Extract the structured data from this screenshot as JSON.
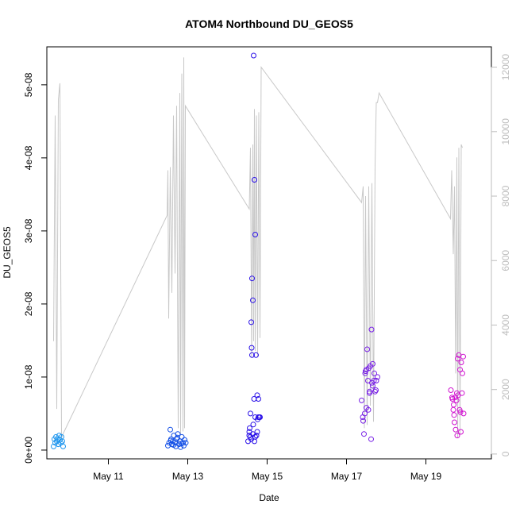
{
  "chart_data": {
    "type": "scatter",
    "title": "ATOM4 Northbound DU_GEOS5",
    "xlabel": "Date",
    "ylabel": "DU_GEOS5",
    "x_units": "days in May",
    "xlim": [
      9.45,
      20.65
    ],
    "ylim": [
      -1.2e-09,
      5.52e-08
    ],
    "y2lim": [
      -150,
      12630
    ],
    "x_ticks": [
      {
        "value": 11,
        "label": "May 11"
      },
      {
        "value": 13,
        "label": "May 13"
      },
      {
        "value": 15,
        "label": "May 15"
      },
      {
        "value": 17,
        "label": "May 17"
      },
      {
        "value": 19,
        "label": "May 19"
      }
    ],
    "y_ticks": [
      {
        "value": 0,
        "label": "0e+00"
      },
      {
        "value": 1e-08,
        "label": "1e-08"
      },
      {
        "value": 2e-08,
        "label": "2e-08"
      },
      {
        "value": 3e-08,
        "label": "3e-08"
      },
      {
        "value": 4e-08,
        "label": "4e-08"
      },
      {
        "value": 5e-08,
        "label": "5e-08"
      }
    ],
    "y2_ticks": [
      {
        "value": 0,
        "label": "0"
      },
      {
        "value": 2000,
        "label": "2000"
      },
      {
        "value": 4000,
        "label": "4000"
      },
      {
        "value": 6000,
        "label": "6000"
      },
      {
        "value": 8000,
        "label": "8000"
      },
      {
        "value": 10000,
        "label": "10000"
      },
      {
        "value": 12000,
        "label": "12000"
      }
    ],
    "grid": false,
    "secondary_series": {
      "color": "#c8c8c8",
      "points": [
        [
          9.62,
          3500
        ],
        [
          9.66,
          10500
        ],
        [
          9.7,
          1400
        ],
        [
          9.74,
          11000
        ],
        [
          9.78,
          11500
        ],
        [
          9.82,
          500
        ],
        [
          9.85,
          600
        ],
        [
          12.48,
          7400
        ],
        [
          12.5,
          8800
        ],
        [
          12.52,
          4200
        ],
        [
          12.56,
          8900
        ],
        [
          12.6,
          5000
        ],
        [
          12.64,
          10500
        ],
        [
          12.68,
          5600
        ],
        [
          12.72,
          10800
        ],
        [
          12.76,
          800
        ],
        [
          12.8,
          11200
        ],
        [
          12.82,
          600
        ],
        [
          12.85,
          11800
        ],
        [
          12.88,
          700
        ],
        [
          12.9,
          12300
        ],
        [
          12.92,
          800
        ],
        [
          12.94,
          10800
        ],
        [
          14.55,
          7600
        ],
        [
          14.58,
          9500
        ],
        [
          14.61,
          3000
        ],
        [
          14.64,
          9600
        ],
        [
          14.66,
          3500
        ],
        [
          14.68,
          10700
        ],
        [
          14.7,
          3200
        ],
        [
          14.73,
          10500
        ],
        [
          14.76,
          3000
        ],
        [
          14.79,
          10600
        ],
        [
          14.82,
          3600
        ],
        [
          14.85,
          12000
        ],
        [
          17.38,
          7800
        ],
        [
          17.42,
          8300
        ],
        [
          17.45,
          800
        ],
        [
          17.48,
          8000
        ],
        [
          17.52,
          900
        ],
        [
          17.56,
          8300
        ],
        [
          17.6,
          1500
        ],
        [
          17.64,
          8400
        ],
        [
          17.68,
          1000
        ],
        [
          17.72,
          9000
        ],
        [
          17.75,
          10900
        ],
        [
          17.78,
          10900
        ],
        [
          17.82,
          11200
        ],
        [
          19.62,
          7300
        ],
        [
          19.65,
          8800
        ],
        [
          19.69,
          6200
        ],
        [
          19.72,
          8300
        ],
        [
          19.75,
          2500
        ],
        [
          19.78,
          9200
        ],
        [
          19.8,
          500
        ],
        [
          19.83,
          9500
        ],
        [
          19.86,
          600
        ],
        [
          19.89,
          9600
        ],
        [
          19.92,
          9500
        ]
      ]
    },
    "series": [
      {
        "color": "#1f96ee",
        "x": [
          9.62,
          9.64,
          9.66,
          9.68,
          9.7,
          9.72,
          9.74,
          9.76,
          9.78,
          9.8,
          9.82,
          9.84,
          9.86
        ],
        "y": [
          5e-10,
          1.5e-09,
          1e-09,
          1.8e-09,
          1.2e-09,
          1.5e-09,
          8e-10,
          2e-09,
          1.4e-09,
          1e-09,
          1.8e-09,
          1.2e-09,
          5e-10
        ]
      },
      {
        "color": "#1450e6",
        "x": [
          12.5,
          12.53,
          12.56,
          12.58,
          12.6,
          12.62,
          12.65,
          12.68,
          12.7,
          12.72,
          12.75,
          12.78,
          12.8,
          12.82,
          12.85,
          12.88,
          12.9,
          12.92,
          12.95,
          12.57,
          12.64,
          12.74,
          12.84
        ],
        "y": [
          6e-10,
          1e-09,
          2.8e-09,
          1.5e-09,
          8e-10,
          1.2e-09,
          2e-09,
          1e-09,
          5e-10,
          1.5e-09,
          2.2e-09,
          8e-10,
          1.2e-09,
          4e-10,
          1.8e-09,
          1e-09,
          6e-10,
          1.4e-09,
          1e-09,
          1.3e-09,
          7e-10,
          1.7e-09,
          9e-10
        ]
      },
      {
        "color": "#2a10e8",
        "x": [
          14.52,
          14.55,
          14.58,
          14.6,
          14.62,
          14.64,
          14.66,
          14.68,
          14.7,
          14.72,
          14.75,
          14.78,
          14.8,
          14.82,
          14.55,
          14.58,
          14.61,
          14.64,
          14.67,
          14.7,
          14.73,
          14.76,
          14.6,
          14.65,
          14.7,
          14.75,
          14.78,
          14.56,
          14.62,
          14.68
        ],
        "y": [
          1.2e-09,
          2.5e-09,
          5e-09,
          1.75e-08,
          2.35e-08,
          2.05e-08,
          5.4e-08,
          3.7e-08,
          2.95e-08,
          1.3e-08,
          7.5e-09,
          7e-09,
          4.5e-09,
          4.5e-09,
          2e-09,
          1.8e-09,
          1.4e-08,
          2.2e-09,
          7e-09,
          4.5e-09,
          2e-09,
          4.2e-09,
          1.5e-09,
          3.5e-09,
          1.8e-09,
          2.5e-09,
          4.5e-09,
          3e-09,
          1.3e-08,
          1.2e-09
        ]
      },
      {
        "color": "#7820e6",
        "x": [
          17.38,
          17.41,
          17.44,
          17.47,
          17.5,
          17.52,
          17.55,
          17.58,
          17.6,
          17.63,
          17.66,
          17.69,
          17.72,
          17.75,
          17.78,
          17.42,
          17.46,
          17.5,
          17.54,
          17.58,
          17.62,
          17.66,
          17.7,
          17.74,
          17.48,
          17.56,
          17.64
        ],
        "y": [
          6.8e-09,
          4.5e-09,
          2.2e-09,
          1.05e-08,
          1.1e-08,
          1.38e-08,
          5.5e-09,
          8e-09,
          1.15e-08,
          1.65e-08,
          1.18e-08,
          9.5e-09,
          8e-09,
          9.5e-09,
          1e-08,
          4e-09,
          5e-09,
          5.8e-09,
          9.5e-09,
          7.8e-09,
          1.5e-09,
          8.8e-09,
          1.05e-08,
          8.2e-09,
          1.08e-08,
          1.12e-08,
          9.2e-09
        ]
      },
      {
        "color": "#d012d0",
        "x": [
          19.63,
          19.66,
          19.69,
          19.72,
          19.75,
          19.78,
          19.8,
          19.83,
          19.86,
          19.89,
          19.92,
          19.95,
          19.67,
          19.71,
          19.74,
          19.77,
          19.81,
          19.85,
          19.88,
          19.91,
          19.94,
          19.7,
          19.79,
          19.87
        ],
        "y": [
          8.2e-09,
          7.2e-09,
          5.5e-09,
          3.8e-09,
          2.8e-09,
          7.8e-09,
          1.25e-08,
          1.3e-08,
          1.1e-08,
          1.2e-08,
          1.05e-08,
          5e-09,
          7e-09,
          4.8e-09,
          7.2e-09,
          6.8e-09,
          7.5e-09,
          5.5e-09,
          2.5e-09,
          7.8e-09,
          1.28e-08,
          6.2e-09,
          2e-09,
          5.2e-09
        ]
      }
    ]
  }
}
